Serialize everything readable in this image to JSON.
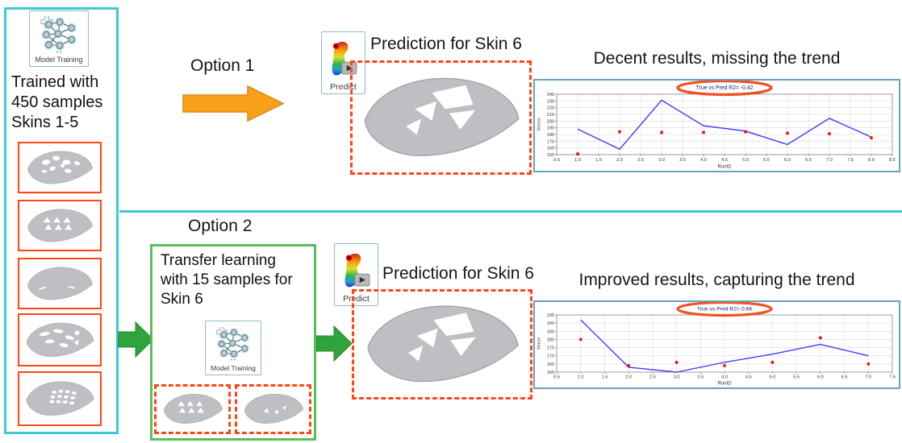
{
  "left_panel": {
    "model_training_label": "Model Training",
    "training_text_lines": [
      "Trained with",
      "450 samples",
      "Skins 1-5"
    ],
    "skin_count": 5
  },
  "option1": {
    "label": "Option 1",
    "predict_label": "Predict",
    "prediction_heading": "Prediction for Skin 6",
    "result_heading": "Decent results, missing the trend"
  },
  "option2": {
    "label": "Option 2",
    "transfer_text": "Transfer learning with 15 samples for Skin 6",
    "model_training_label": "Model Training",
    "predict_label": "Predict",
    "prediction_heading": "Prediction for Skin 6",
    "result_heading": "Improved results, capturing the trend"
  },
  "icons": {
    "model_training": "neural-network-icon",
    "predict": "fea-part-play-icon",
    "skins": "car-hood-icon",
    "flow_arrows": "block-arrow-icon",
    "r2_highlight": "ellipse-highlight"
  },
  "colors": {
    "panel_cyan": "#3EC9D6",
    "skin_border_orange": "#FF4713",
    "green_box": "#5CBB5F",
    "green_arrow": "#2FA33C",
    "orange_arrow": "#F9A01B",
    "highlight_ellipse": "#F05323",
    "pred_line_blue": "#4040FF",
    "true_point_red": "#FF0000"
  },
  "chart_data": [
    {
      "type": "line",
      "title": "True vs Pred R2= -0.42",
      "xlabel": "RunID",
      "ylabel": "Stress",
      "xlim": [
        0.5,
        8.5
      ],
      "ylim": [
        150,
        240
      ],
      "x_tick_step": 0.5,
      "y_tick_step": 10,
      "grid": true,
      "legend": "none",
      "series": [
        {
          "name": "Predicted",
          "style": "line",
          "color": "#4040FF",
          "x": [
            1,
            2,
            3,
            4,
            5,
            6,
            7,
            8
          ],
          "y": [
            188,
            158,
            231,
            193,
            185,
            165,
            204,
            176
          ]
        },
        {
          "name": "True",
          "style": "scatter",
          "color": "#FF0000",
          "x": [
            1,
            2,
            3,
            4,
            5,
            6,
            7,
            8
          ],
          "y": [
            151,
            184,
            183,
            183,
            184,
            182,
            181,
            175
          ]
        }
      ],
      "annotation": {
        "shape": "ellipse-around-title",
        "color": "#F05323"
      }
    },
    {
      "type": "line",
      "title": "True vs Pred R2= 0.66",
      "xlabel": "RunID",
      "ylabel": "Stress",
      "xlim": [
        0.5,
        7.5
      ],
      "ylim": [
        160,
        195
      ],
      "x_tick_step": 0.5,
      "y_tick_step": 5,
      "grid": true,
      "legend": "none",
      "series": [
        {
          "name": "Predicted",
          "style": "line",
          "color": "#4040FF",
          "x": [
            1,
            2,
            3,
            4,
            5,
            6,
            7
          ],
          "y": [
            192,
            163,
            160,
            166,
            171,
            177,
            170
          ]
        },
        {
          "name": "True",
          "style": "scatter",
          "color": "#FF0000",
          "x": [
            1,
            2,
            3,
            4,
            5,
            6,
            7
          ],
          "y": [
            180,
            164,
            166,
            164,
            166,
            181,
            165
          ]
        }
      ],
      "annotation": {
        "shape": "ellipse-around-title",
        "color": "#F05323"
      }
    }
  ]
}
